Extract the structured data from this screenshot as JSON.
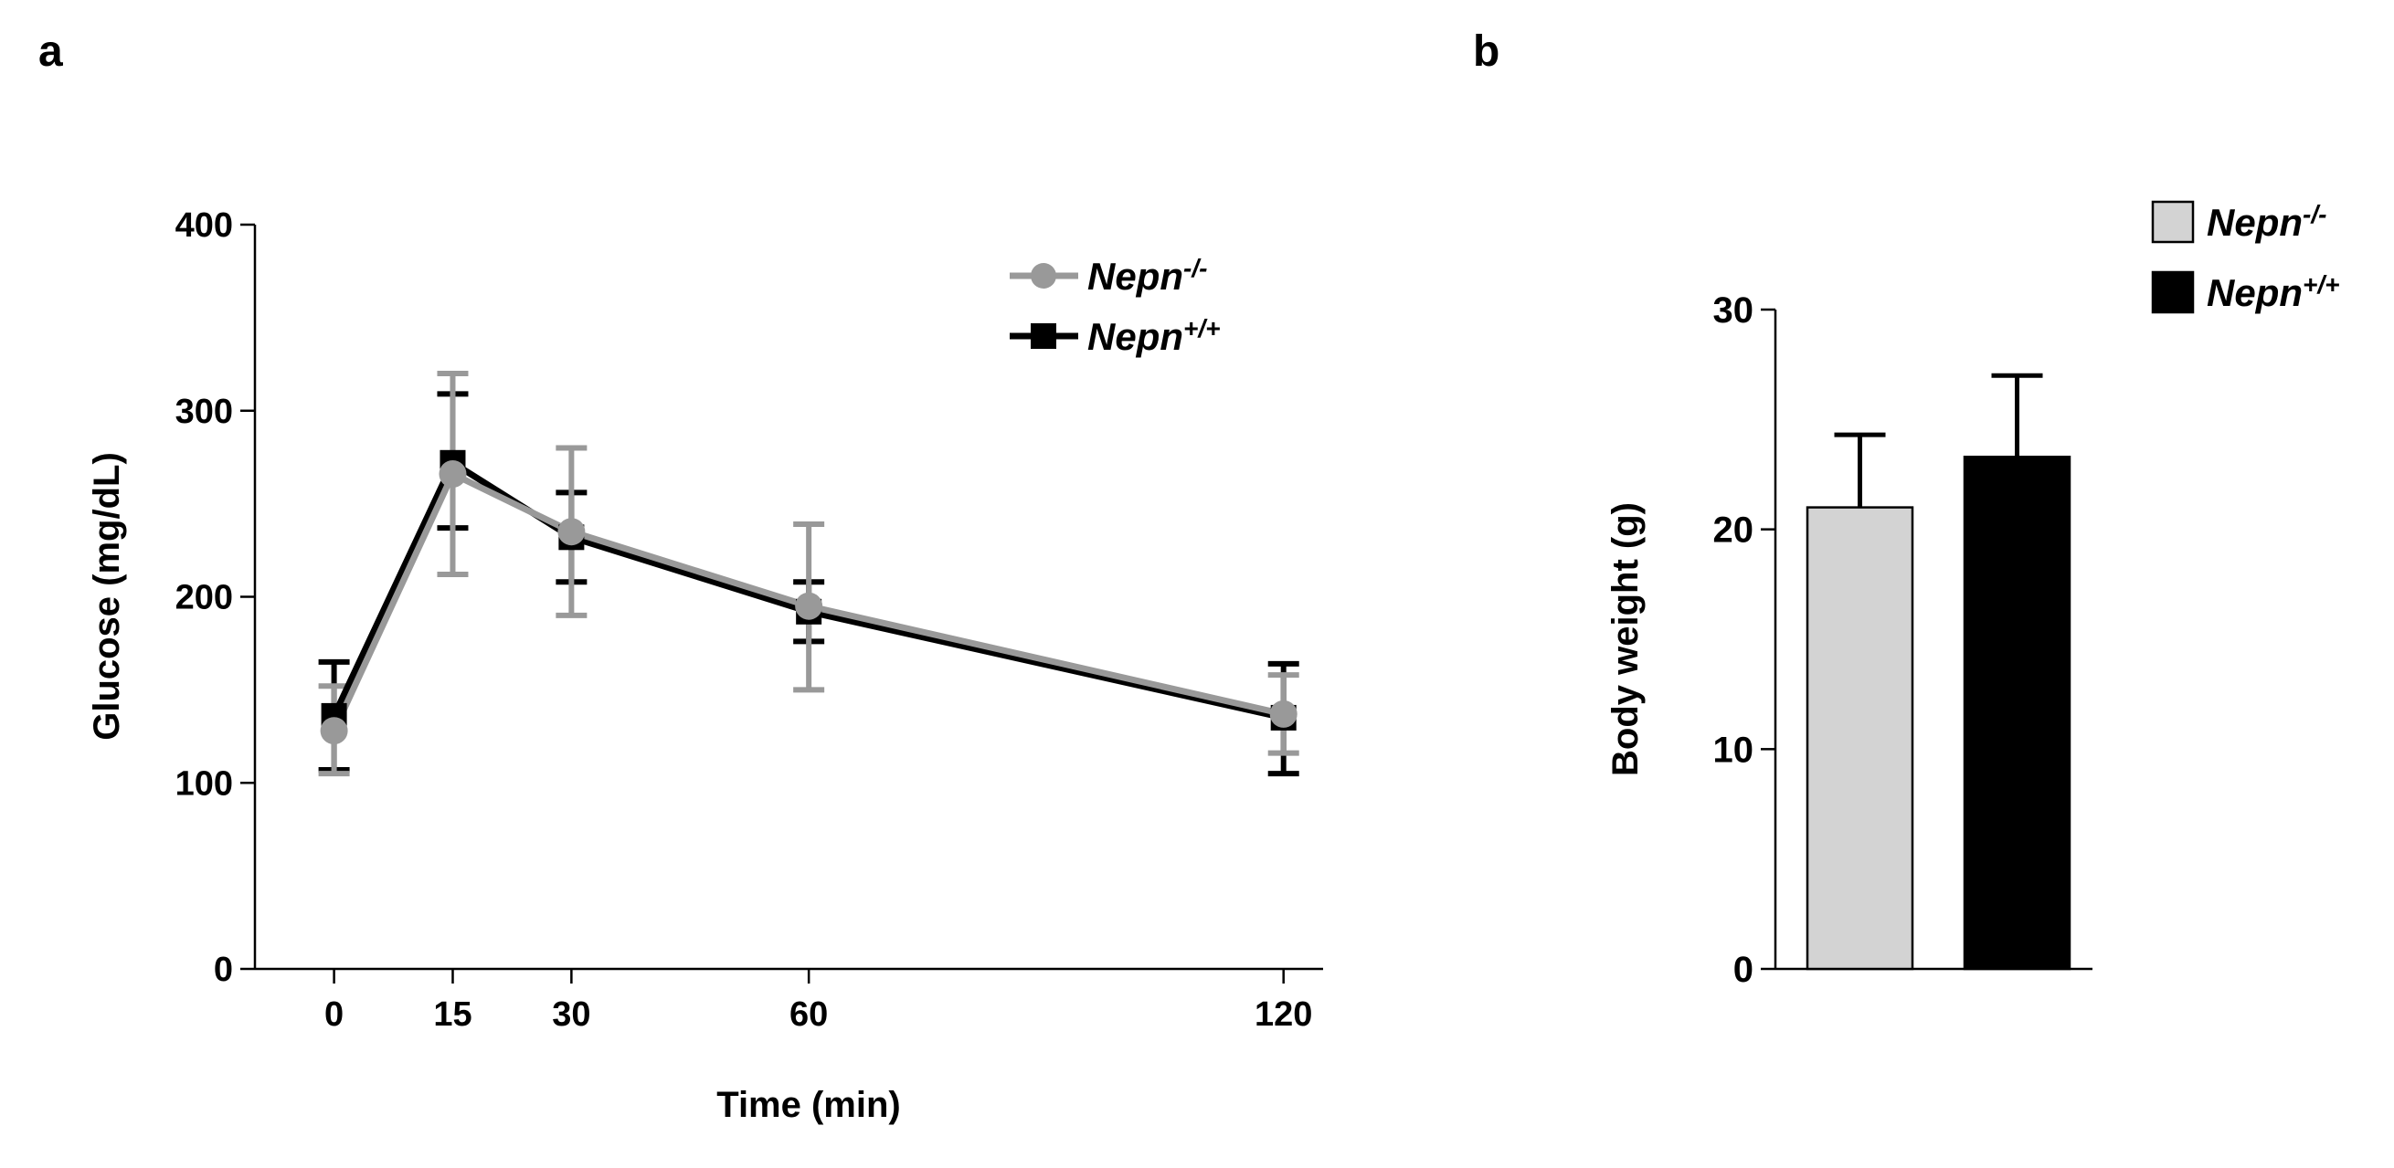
{
  "panels": {
    "a": {
      "label": "a"
    },
    "b": {
      "label": "b"
    }
  },
  "chart_data": [
    {
      "type": "line",
      "title": "",
      "xlabel": "Time (min)",
      "ylabel": "Glucose (mg/dL)",
      "x": [
        0,
        15,
        30,
        60,
        120
      ],
      "x_tick_labels": [
        "0",
        "15",
        "30",
        "60",
        "120"
      ],
      "xlim": [
        -10,
        125
      ],
      "ylim": [
        0,
        400
      ],
      "y_ticks": [
        0,
        100,
        200,
        300,
        400
      ],
      "y_tick_labels": [
        "0",
        "100",
        "200",
        "300",
        "400"
      ],
      "legend_position": "top-right",
      "series": [
        {
          "name": "Nepn-/-",
          "legend_base": "Nepn",
          "legend_sup": "-/-",
          "color": "#999999",
          "marker": "circle",
          "values": [
            128,
            266,
            235,
            195,
            137
          ],
          "error_low": [
            105,
            212,
            190,
            150,
            116
          ],
          "error_high": [
            152,
            320,
            280,
            239,
            158
          ]
        },
        {
          "name": "Nepn+/+",
          "legend_base": "Nepn",
          "legend_sup": "+/+",
          "color": "#000000",
          "marker": "square",
          "values": [
            136,
            272,
            232,
            192,
            135
          ],
          "error_low": [
            107,
            237,
            208,
            176,
            105
          ],
          "error_high": [
            165,
            309,
            256,
            208,
            164
          ]
        }
      ]
    },
    {
      "type": "bar",
      "title": "",
      "xlabel": "",
      "ylabel": "Body weight (g)",
      "categories": [
        "Nepn-/-",
        "Nepn+/+"
      ],
      "ylim": [
        0,
        30
      ],
      "y_ticks": [
        0,
        10,
        20,
        30
      ],
      "y_tick_labels": [
        "0",
        "10",
        "20",
        "30"
      ],
      "legend_position": "top-right",
      "series": [
        {
          "name": "Nepn-/-",
          "legend_base": "Nepn",
          "legend_sup": "-/-",
          "color": "#d3d3d3",
          "value": 21.0,
          "error_high": 24.3
        },
        {
          "name": "Nepn+/+",
          "legend_base": "Nepn",
          "legend_sup": "+/+",
          "color": "#000000",
          "value": 23.3,
          "error_high": 27.0
        }
      ]
    }
  ]
}
